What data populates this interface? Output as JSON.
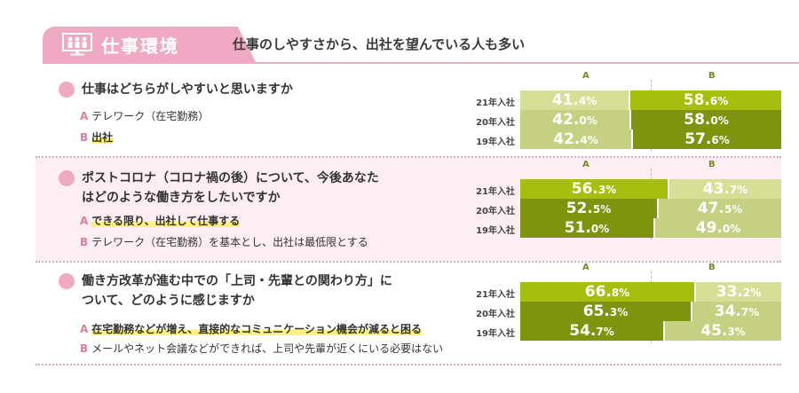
{
  "header": {
    "title": "仕事環境",
    "subtitle": "仕事のしやすさから、出社を望んでいる人も多い",
    "icon": "meeting-people-icon"
  },
  "colors": {
    "pink": "#efa9c3",
    "bar_lime": "#a6bf0f",
    "bar_olive": "#7e940e",
    "bar_pale": "#d7df96",
    "bar_pale2": "#c5d080",
    "highlight": "#fff27a"
  },
  "chart_data": [
    {
      "type": "bar",
      "stacked": true,
      "orientation": "horizontal",
      "title": "仕事はどちらがしやすいと思いますか",
      "options": [
        {
          "key": "A",
          "text": "テレワーク（在宅勤務）",
          "highlight": false
        },
        {
          "key": "B",
          "text": "出社",
          "highlight": true
        }
      ],
      "series_labels": [
        "A",
        "B"
      ],
      "categories": [
        "21年入社",
        "20年入社",
        "19年入社"
      ],
      "series": [
        {
          "name": "A",
          "values": [
            41.4,
            42.0,
            42.4
          ]
        },
        {
          "name": "B",
          "values": [
            58.6,
            58.0,
            57.6
          ]
        }
      ],
      "labels": [
        [
          "41.",
          "4%",
          "58.",
          "6%"
        ],
        [
          "42.",
          "0%",
          "58.",
          "0%"
        ],
        [
          "42.",
          "4%",
          "57.",
          "6%"
        ]
      ],
      "emphasis": "B"
    },
    {
      "type": "bar",
      "stacked": true,
      "orientation": "horizontal",
      "title": "ポストコロナ（コロナ禍の後）について、今後あなたはどのような働き方をしたいですか",
      "options": [
        {
          "key": "A",
          "text": "できる限り、出社して仕事する",
          "highlight": true
        },
        {
          "key": "B",
          "text": "テレワーク（在宅勤務）を基本とし、出社は最低限とする",
          "highlight": false
        }
      ],
      "series_labels": [
        "A",
        "B"
      ],
      "categories": [
        "21年入社",
        "20年入社",
        "19年入社"
      ],
      "series": [
        {
          "name": "A",
          "values": [
            56.3,
            52.5,
            51.0
          ]
        },
        {
          "name": "B",
          "values": [
            43.7,
            47.5,
            49.0
          ]
        }
      ],
      "labels": [
        [
          "56.",
          "3%",
          "43.",
          "7%"
        ],
        [
          "52.",
          "5%",
          "47.",
          "5%"
        ],
        [
          "51.",
          "0%",
          "49.",
          "0%"
        ]
      ],
      "emphasis": "A"
    },
    {
      "type": "bar",
      "stacked": true,
      "orientation": "horizontal",
      "title": "働き方改革が進む中での「上司・先輩との関わり方」について、どのように感じますか",
      "options": [
        {
          "key": "A",
          "text": "在宅勤務などが増え、直接的なコミュニケーション機会が減ると困る",
          "highlight": true
        },
        {
          "key": "B",
          "text": "メールやネット会議などができれば、上司や先輩が近くにいる必要はない",
          "highlight": false
        }
      ],
      "series_labels": [
        "A",
        "B"
      ],
      "categories": [
        "21年入社",
        "20年入社",
        "19年入社"
      ],
      "series": [
        {
          "name": "A",
          "values": [
            66.8,
            65.3,
            54.7
          ]
        },
        {
          "name": "B",
          "values": [
            33.2,
            34.7,
            45.3
          ]
        }
      ],
      "labels": [
        [
          "66.",
          "8%",
          "33.",
          "2%"
        ],
        [
          "65.",
          "3%",
          "34.",
          "7%"
        ],
        [
          "54.",
          "7%",
          "45.",
          "3%"
        ]
      ],
      "emphasis": "A"
    }
  ]
}
